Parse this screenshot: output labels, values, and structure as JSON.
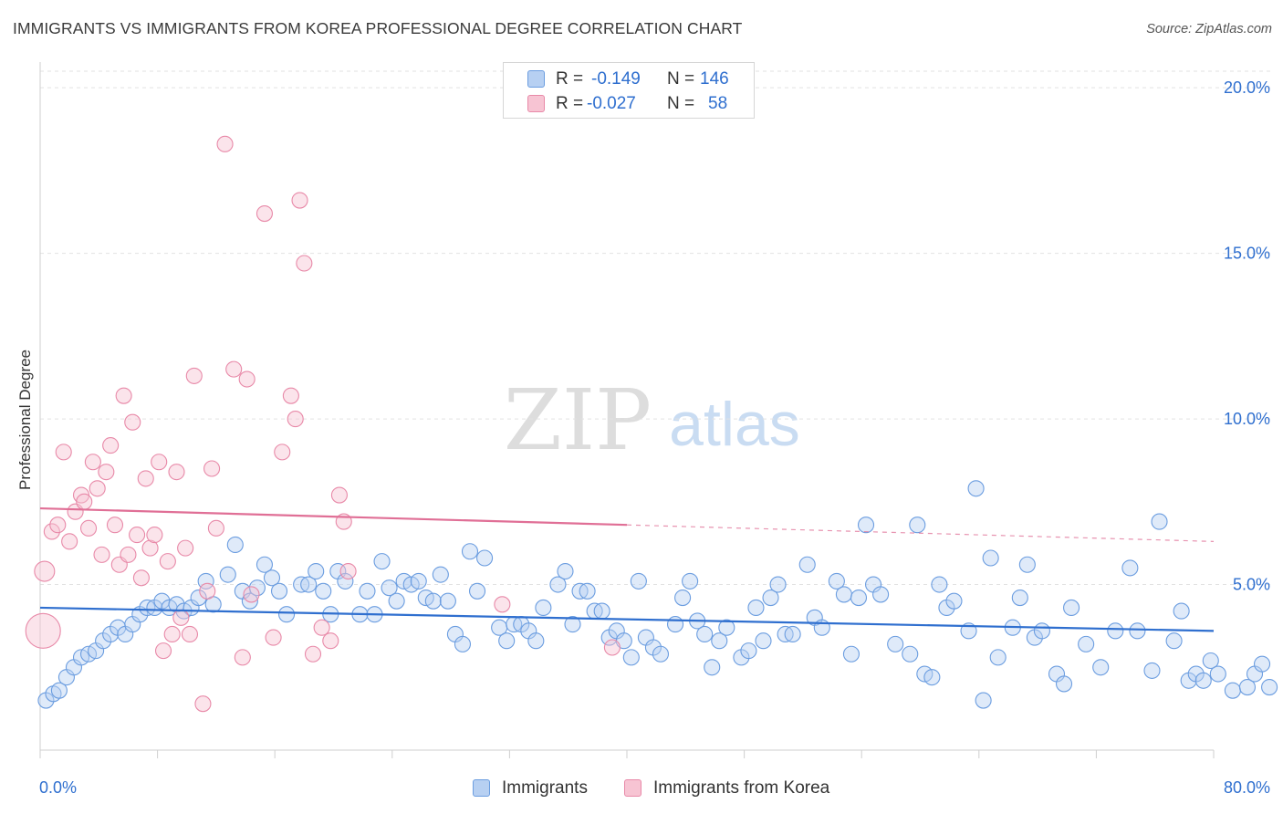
{
  "title": "IMMIGRANTS VS IMMIGRANTS FROM KOREA PROFESSIONAL DEGREE CORRELATION CHART",
  "source": "Source: ZipAtlas.com",
  "watermark": {
    "zip": "ZIP",
    "atlas": "atlas"
  },
  "stats": [
    {
      "r_label": "R =",
      "r_value": "-0.149",
      "n_label": "N =",
      "n_value": "146",
      "color": "#6b9de0"
    },
    {
      "r_label": "R =",
      "r_value": "-0.027",
      "n_label": "N =",
      "n_value": "58",
      "color": "#e889a8"
    }
  ],
  "legend": {
    "series_a": "Immigrants",
    "series_b": "Immigrants from Korea"
  },
  "chart_data": {
    "type": "scatter",
    "xlabel": "",
    "ylabel": "Professional Degree",
    "xlim": [
      0,
      80
    ],
    "ylim": [
      0,
      20.5
    ],
    "x_tick_labels": [
      "0.0%",
      "80.0%"
    ],
    "y_tick_labels": [
      "5.0%",
      "10.0%",
      "15.0%",
      "20.0%"
    ],
    "y_ticks": [
      5,
      10,
      15,
      20
    ],
    "grid": true,
    "colors": {
      "blue": "#6b9de0",
      "blue_line": "#2f6fcf",
      "pink": "#e889a8",
      "pink_line": "#e06f96",
      "tick_text": "#2f6fcf"
    },
    "series": [
      {
        "name": "Immigrants",
        "color": "#6b9de0",
        "trend": {
          "x": [
            0,
            80
          ],
          "y": [
            4.3,
            3.6
          ],
          "dashed_from": null
        },
        "points": [
          [
            0.4,
            1.5
          ],
          [
            0.9,
            1.7
          ],
          [
            1.3,
            1.8
          ],
          [
            1.8,
            2.2
          ],
          [
            2.3,
            2.5
          ],
          [
            2.8,
            2.8
          ],
          [
            3.3,
            2.9
          ],
          [
            3.8,
            3.0
          ],
          [
            4.3,
            3.3
          ],
          [
            4.8,
            3.5
          ],
          [
            5.3,
            3.7
          ],
          [
            5.8,
            3.5
          ],
          [
            6.3,
            3.8
          ],
          [
            6.8,
            4.1
          ],
          [
            7.3,
            4.3
          ],
          [
            7.8,
            4.3
          ],
          [
            8.3,
            4.5
          ],
          [
            8.8,
            4.3
          ],
          [
            9.3,
            4.4
          ],
          [
            9.8,
            4.2
          ],
          [
            10.3,
            4.3
          ],
          [
            10.8,
            4.6
          ],
          [
            11.3,
            5.1
          ],
          [
            11.8,
            4.4
          ],
          [
            12.8,
            5.3
          ],
          [
            13.3,
            6.2
          ],
          [
            13.8,
            4.8
          ],
          [
            14.3,
            4.5
          ],
          [
            14.8,
            4.9
          ],
          [
            15.3,
            5.6
          ],
          [
            15.8,
            5.2
          ],
          [
            16.3,
            4.8
          ],
          [
            16.8,
            4.1
          ],
          [
            17.8,
            5.0
          ],
          [
            18.3,
            5.0
          ],
          [
            18.8,
            5.4
          ],
          [
            19.3,
            4.8
          ],
          [
            19.8,
            4.1
          ],
          [
            20.3,
            5.4
          ],
          [
            20.8,
            5.1
          ],
          [
            21.8,
            4.1
          ],
          [
            22.3,
            4.8
          ],
          [
            22.8,
            4.1
          ],
          [
            23.3,
            5.7
          ],
          [
            23.8,
            4.9
          ],
          [
            24.3,
            4.5
          ],
          [
            24.8,
            5.1
          ],
          [
            25.3,
            5.0
          ],
          [
            25.8,
            5.1
          ],
          [
            26.3,
            4.6
          ],
          [
            26.8,
            4.5
          ],
          [
            27.3,
            5.3
          ],
          [
            27.8,
            4.5
          ],
          [
            28.3,
            3.5
          ],
          [
            28.8,
            3.2
          ],
          [
            29.3,
            6.0
          ],
          [
            29.8,
            4.8
          ],
          [
            30.3,
            5.8
          ],
          [
            31.3,
            3.7
          ],
          [
            31.8,
            3.3
          ],
          [
            32.3,
            3.8
          ],
          [
            32.8,
            3.8
          ],
          [
            33.3,
            3.6
          ],
          [
            33.8,
            3.3
          ],
          [
            34.3,
            4.3
          ],
          [
            35.3,
            5.0
          ],
          [
            35.8,
            5.4
          ],
          [
            36.3,
            3.8
          ],
          [
            36.8,
            4.8
          ],
          [
            37.3,
            4.8
          ],
          [
            37.8,
            4.2
          ],
          [
            38.3,
            4.2
          ],
          [
            38.8,
            3.4
          ],
          [
            39.3,
            3.6
          ],
          [
            39.8,
            3.3
          ],
          [
            40.3,
            2.8
          ],
          [
            40.8,
            5.1
          ],
          [
            41.3,
            3.4
          ],
          [
            41.8,
            3.1
          ],
          [
            42.3,
            2.9
          ],
          [
            43.3,
            3.8
          ],
          [
            43.8,
            4.6
          ],
          [
            44.3,
            5.1
          ],
          [
            44.8,
            3.9
          ],
          [
            45.3,
            3.5
          ],
          [
            45.8,
            2.5
          ],
          [
            46.3,
            3.3
          ],
          [
            46.8,
            3.7
          ],
          [
            47.8,
            2.8
          ],
          [
            48.3,
            3.0
          ],
          [
            48.8,
            4.3
          ],
          [
            49.3,
            3.3
          ],
          [
            49.8,
            4.6
          ],
          [
            50.3,
            5.0
          ],
          [
            50.8,
            3.5
          ],
          [
            51.3,
            3.5
          ],
          [
            52.3,
            5.6
          ],
          [
            52.8,
            4.0
          ],
          [
            53.3,
            3.7
          ],
          [
            54.3,
            5.1
          ],
          [
            54.8,
            4.7
          ],
          [
            55.3,
            2.9
          ],
          [
            55.8,
            4.6
          ],
          [
            56.3,
            6.8
          ],
          [
            56.8,
            5.0
          ],
          [
            57.3,
            4.7
          ],
          [
            58.3,
            3.2
          ],
          [
            59.3,
            2.9
          ],
          [
            59.8,
            6.8
          ],
          [
            60.3,
            2.3
          ],
          [
            60.8,
            2.2
          ],
          [
            61.3,
            5.0
          ],
          [
            61.8,
            4.3
          ],
          [
            62.3,
            4.5
          ],
          [
            63.3,
            3.6
          ],
          [
            63.8,
            7.9
          ],
          [
            64.3,
            1.5
          ],
          [
            64.8,
            5.8
          ],
          [
            65.3,
            2.8
          ],
          [
            66.3,
            3.7
          ],
          [
            66.8,
            4.6
          ],
          [
            67.3,
            5.6
          ],
          [
            67.8,
            3.4
          ],
          [
            68.3,
            3.6
          ],
          [
            69.3,
            2.3
          ],
          [
            69.8,
            2.0
          ],
          [
            70.3,
            4.3
          ],
          [
            71.3,
            3.2
          ],
          [
            72.3,
            2.5
          ],
          [
            73.3,
            3.6
          ],
          [
            74.3,
            5.5
          ],
          [
            74.8,
            3.6
          ],
          [
            75.8,
            2.4
          ],
          [
            76.3,
            6.9
          ],
          [
            77.3,
            3.3
          ],
          [
            77.8,
            4.2
          ],
          [
            78.3,
            2.1
          ],
          [
            78.8,
            2.3
          ],
          [
            79.3,
            2.1
          ],
          [
            79.8,
            2.7
          ],
          [
            80.3,
            2.3
          ],
          [
            81.3,
            1.8
          ],
          [
            82.3,
            1.9
          ],
          [
            82.8,
            2.3
          ],
          [
            83.3,
            2.6
          ],
          [
            83.8,
            1.9
          ]
        ]
      },
      {
        "name": "Immigrants from Korea",
        "color": "#e889a8",
        "trend": {
          "x": [
            0,
            80
          ],
          "y": [
            7.3,
            6.3
          ],
          "dashed_from": 40
        },
        "points": [
          [
            0.3,
            5.4
          ],
          [
            0.8,
            6.6
          ],
          [
            1.2,
            6.8
          ],
          [
            1.6,
            9.0
          ],
          [
            2.0,
            6.3
          ],
          [
            2.4,
            7.2
          ],
          [
            2.8,
            7.7
          ],
          [
            3.0,
            7.5
          ],
          [
            3.3,
            6.7
          ],
          [
            3.6,
            8.7
          ],
          [
            3.9,
            7.9
          ],
          [
            4.2,
            5.9
          ],
          [
            4.5,
            8.4
          ],
          [
            4.8,
            9.2
          ],
          [
            5.1,
            6.8
          ],
          [
            5.4,
            5.6
          ],
          [
            5.7,
            10.7
          ],
          [
            6.0,
            5.9
          ],
          [
            6.3,
            9.9
          ],
          [
            6.6,
            6.5
          ],
          [
            6.9,
            5.2
          ],
          [
            7.2,
            8.2
          ],
          [
            7.5,
            6.1
          ],
          [
            7.8,
            6.5
          ],
          [
            8.1,
            8.7
          ],
          [
            8.4,
            3.0
          ],
          [
            8.7,
            5.7
          ],
          [
            9.0,
            3.5
          ],
          [
            9.3,
            8.4
          ],
          [
            9.6,
            4.0
          ],
          [
            9.9,
            6.1
          ],
          [
            10.2,
            3.5
          ],
          [
            10.5,
            11.3
          ],
          [
            11.1,
            1.4
          ],
          [
            11.4,
            4.8
          ],
          [
            11.7,
            8.5
          ],
          [
            12.0,
            6.7
          ],
          [
            12.6,
            18.3
          ],
          [
            13.2,
            11.5
          ],
          [
            13.8,
            2.8
          ],
          [
            14.1,
            11.2
          ],
          [
            14.4,
            4.7
          ],
          [
            15.3,
            16.2
          ],
          [
            15.9,
            3.4
          ],
          [
            16.5,
            9.0
          ],
          [
            17.1,
            10.7
          ],
          [
            17.4,
            10.0
          ],
          [
            17.7,
            16.6
          ],
          [
            18.0,
            14.7
          ],
          [
            18.6,
            2.9
          ],
          [
            19.2,
            3.7
          ],
          [
            19.8,
            3.3
          ],
          [
            20.4,
            7.7
          ],
          [
            20.7,
            6.9
          ],
          [
            21.0,
            5.4
          ],
          [
            31.5,
            4.4
          ],
          [
            39.0,
            3.1
          ],
          [
            0.2,
            3.6
          ]
        ]
      }
    ]
  }
}
